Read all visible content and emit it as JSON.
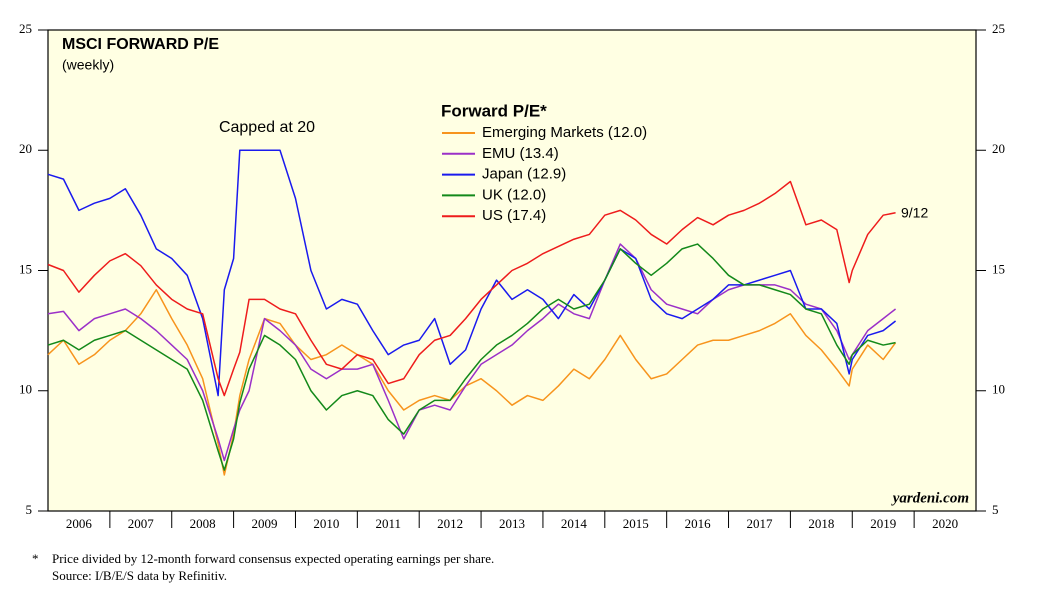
{
  "chart_data": {
    "type": "line",
    "title": "MSCI FORWARD P/E",
    "subtitle": "(weekly)",
    "legend_title": "Forward P/E*",
    "legend": "upper-center",
    "annotations": [
      {
        "text": "Capped at 20",
        "color": "#000000"
      },
      {
        "text": "9/12",
        "color": "#ee1c1c"
      }
    ],
    "source_brand": "yardeni.com",
    "footnote_marker": "*",
    "footnotes": [
      "Price divided by 12-month forward consensus expected operating earnings per share.",
      "Source: I/B/E/S data by Refinitiv."
    ],
    "xlim": [
      2006,
      2021
    ],
    "xticks": [
      {
        "value": 2006.5,
        "label": "2006"
      },
      {
        "value": 2007.5,
        "label": "2007"
      },
      {
        "value": 2008.5,
        "label": "2008"
      },
      {
        "value": 2009.5,
        "label": "2009"
      },
      {
        "value": 2010.5,
        "label": "2010"
      },
      {
        "value": 2011.5,
        "label": "2011"
      },
      {
        "value": 2012.5,
        "label": "2012"
      },
      {
        "value": 2013.5,
        "label": "2013"
      },
      {
        "value": 2014.5,
        "label": "2014"
      },
      {
        "value": 2015.5,
        "label": "2015"
      },
      {
        "value": 2016.5,
        "label": "2016"
      },
      {
        "value": 2017.5,
        "label": "2017"
      },
      {
        "value": 2018.5,
        "label": "2018"
      },
      {
        "value": 2019.5,
        "label": "2019"
      },
      {
        "value": 2020.5,
        "label": "2020"
      }
    ],
    "xticks_minor": [
      2007,
      2008,
      2009,
      2010,
      2011,
      2012,
      2013,
      2014,
      2015,
      2016,
      2017,
      2018,
      2019,
      2020
    ],
    "ylim": [
      5,
      25
    ],
    "yticks": [
      5,
      10,
      15,
      20,
      25
    ],
    "right_axis_mirror": true,
    "plot_background": "#ffffe3",
    "x": [
      2006,
      2006.25,
      2006.5,
      2006.75,
      2007,
      2007.25,
      2007.5,
      2007.75,
      2008,
      2008.25,
      2008.5,
      2008.75,
      2008.85,
      2009,
      2009.1,
      2009.25,
      2009.5,
      2009.75,
      2010,
      2010.25,
      2010.5,
      2010.75,
      2011,
      2011.25,
      2011.5,
      2011.75,
      2012,
      2012.25,
      2012.5,
      2012.75,
      2013,
      2013.25,
      2013.5,
      2013.75,
      2014,
      2014.25,
      2014.5,
      2014.75,
      2015,
      2015.25,
      2015.5,
      2015.75,
      2016,
      2016.25,
      2016.5,
      2016.75,
      2017,
      2017.25,
      2017.5,
      2017.75,
      2018,
      2018.25,
      2018.5,
      2018.75,
      2018.95,
      2019,
      2019.25,
      2019.5,
      2019.7
    ],
    "series": [
      {
        "name": "Emerging Markets (12.0)",
        "color": "#f7941d",
        "values": [
          11.5,
          12.1,
          11.1,
          11.5,
          12.1,
          12.5,
          13.2,
          14.2,
          13.0,
          11.9,
          10.5,
          7.8,
          6.5,
          8.2,
          9.8,
          11.3,
          13.0,
          12.8,
          11.9,
          11.3,
          11.5,
          11.9,
          11.5,
          11.1,
          10.0,
          9.2,
          9.6,
          9.8,
          9.6,
          10.2,
          10.5,
          10.0,
          9.4,
          9.8,
          9.6,
          10.2,
          10.9,
          10.5,
          11.3,
          12.3,
          11.3,
          10.5,
          10.7,
          11.3,
          11.9,
          12.1,
          12.1,
          12.3,
          12.5,
          12.8,
          13.2,
          12.3,
          11.7,
          10.9,
          10.2,
          10.9,
          11.9,
          11.3,
          12.0
        ]
      },
      {
        "name": "EMU (13.4)",
        "color": "#9b30c8",
        "values": [
          13.2,
          13.3,
          12.5,
          13.0,
          13.2,
          13.4,
          13.0,
          12.5,
          11.9,
          11.3,
          10.0,
          8.0,
          7.1,
          8.4,
          9.2,
          10.0,
          13.0,
          12.5,
          11.9,
          10.9,
          10.5,
          10.9,
          10.9,
          11.1,
          9.6,
          8.0,
          9.2,
          9.4,
          9.2,
          10.2,
          11.1,
          11.5,
          11.9,
          12.5,
          13.0,
          13.6,
          13.2,
          13.0,
          14.6,
          16.1,
          15.5,
          14.2,
          13.6,
          13.4,
          13.2,
          13.8,
          14.2,
          14.4,
          14.4,
          14.4,
          14.2,
          13.6,
          13.4,
          12.5,
          11.3,
          11.5,
          12.5,
          13.0,
          13.4
        ]
      },
      {
        "name": "Japan (12.9)",
        "color": "#1a1aee",
        "values": [
          19.0,
          18.8,
          17.5,
          17.8,
          18.0,
          18.4,
          17.3,
          15.9,
          15.5,
          14.8,
          13.0,
          9.8,
          14.2,
          15.5,
          20,
          20,
          20,
          20,
          18.0,
          15.0,
          13.4,
          13.8,
          13.6,
          12.5,
          11.5,
          11.9,
          12.1,
          13.0,
          11.1,
          11.7,
          13.4,
          14.6,
          13.8,
          14.2,
          13.8,
          13.0,
          14.0,
          13.4,
          14.6,
          15.9,
          15.5,
          13.8,
          13.2,
          13.0,
          13.4,
          13.8,
          14.4,
          14.4,
          14.6,
          14.8,
          15.0,
          13.4,
          13.4,
          12.8,
          10.7,
          11.3,
          12.3,
          12.5,
          12.9
        ]
      },
      {
        "name": "UK (12.0)",
        "color": "#13891a",
        "values": [
          11.9,
          12.1,
          11.7,
          12.1,
          12.3,
          12.5,
          12.1,
          11.7,
          11.3,
          10.9,
          9.6,
          7.5,
          6.7,
          8.0,
          9.5,
          10.9,
          12.3,
          11.9,
          11.3,
          10.0,
          9.2,
          9.8,
          10.0,
          9.8,
          8.8,
          8.2,
          9.2,
          9.6,
          9.6,
          10.5,
          11.3,
          11.9,
          12.3,
          12.8,
          13.4,
          13.8,
          13.4,
          13.6,
          14.6,
          15.9,
          15.3,
          14.8,
          15.3,
          15.9,
          16.1,
          15.5,
          14.8,
          14.4,
          14.4,
          14.2,
          14.0,
          13.4,
          13.2,
          11.9,
          11.1,
          11.5,
          12.1,
          11.9,
          12.0
        ]
      },
      {
        "name": "US (17.4)",
        "color": "#ee1c1c",
        "values": [
          15.25,
          15.0,
          14.1,
          14.8,
          15.4,
          15.7,
          15.2,
          14.4,
          13.8,
          13.4,
          13.2,
          10.5,
          9.8,
          10.9,
          11.6,
          13.8,
          13.8,
          13.4,
          13.2,
          12.1,
          11.1,
          10.9,
          11.5,
          11.3,
          10.3,
          10.5,
          11.5,
          12.1,
          12.3,
          13.0,
          13.8,
          14.4,
          15.0,
          15.3,
          15.7,
          16.0,
          16.3,
          16.5,
          17.3,
          17.5,
          17.1,
          16.5,
          16.1,
          16.7,
          17.2,
          16.9,
          17.3,
          17.5,
          17.8,
          18.2,
          18.7,
          16.9,
          17.1,
          16.7,
          14.5,
          15.0,
          16.5,
          17.3,
          17.4
        ]
      }
    ]
  }
}
